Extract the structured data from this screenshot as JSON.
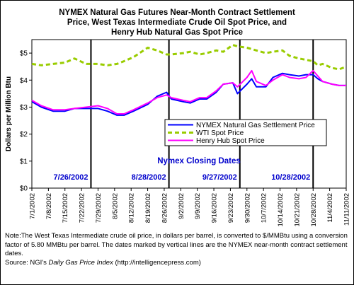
{
  "chart_data": {
    "type": "line",
    "title_lines": [
      "NYMEX Natural Gas Futures Near-Month Contract Settlement",
      "Price, West Texas Intermediate Crude Oil Spot Price, and",
      "Henry Hub Natural Gas Spot Price"
    ],
    "ylabel": "Dollars per Million Btu",
    "ylim": [
      0,
      5.5
    ],
    "y_ticks": [
      "$0",
      "$1",
      "$2",
      "$3",
      "$4",
      "$5"
    ],
    "x_ticks": [
      "7/1/2002",
      "7/8/2002",
      "7/15/2002",
      "7/22/2002",
      "7/29/2002",
      "8/5/2002",
      "8/12/2002",
      "8/19/2002",
      "8/26/2002",
      "9/2/2002",
      "9/9/2002",
      "9/16/2002",
      "9/23/2002",
      "9/30/2002",
      "10/7/2002",
      "10/14/2002",
      "10/21/2002",
      "10/28/2002",
      "11/4/2002",
      "11/11/2002"
    ],
    "x_start": "7/1/2002",
    "x_end": "11/11/2002",
    "grid": false,
    "legend_position": "center-right",
    "annotation_title": "Nymex Closing Dates",
    "closing_dates": [
      {
        "date": "7/26/2002",
        "label": "7/26/2002"
      },
      {
        "date": "8/28/2002",
        "label": "8/28/2002"
      },
      {
        "date": "9/27/2002",
        "label": "9/27/2002"
      },
      {
        "date": "10/28/2002",
        "label": "10/28/2002"
      }
    ],
    "series": [
      {
        "name": "NYMEX Natural Gas Settlement Price",
        "color": "#0000ff",
        "style": "solid",
        "points": [
          [
            "7/1/2002",
            3.2
          ],
          [
            "7/5/2002",
            3.0
          ],
          [
            "7/10/2002",
            2.85
          ],
          [
            "7/15/2002",
            2.85
          ],
          [
            "7/19/2002",
            2.95
          ],
          [
            "7/24/2002",
            2.95
          ],
          [
            "7/29/2002",
            2.95
          ],
          [
            "8/2/2002",
            2.85
          ],
          [
            "8/6/2002",
            2.7
          ],
          [
            "8/9/2002",
            2.7
          ],
          [
            "8/13/2002",
            2.85
          ],
          [
            "8/19/2002",
            3.1
          ],
          [
            "8/23/2002",
            3.4
          ],
          [
            "8/27/2002",
            3.55
          ],
          [
            "8/29/2002",
            3.3
          ],
          [
            "9/3/2002",
            3.2
          ],
          [
            "9/6/2002",
            3.15
          ],
          [
            "9/10/2002",
            3.3
          ],
          [
            "9/13/2002",
            3.3
          ],
          [
            "9/17/2002",
            3.55
          ],
          [
            "9/20/2002",
            3.85
          ],
          [
            "9/24/2002",
            3.9
          ],
          [
            "9/26/2002",
            3.5
          ],
          [
            "9/30/2002",
            3.85
          ],
          [
            "10/2/2002",
            4.05
          ],
          [
            "10/4/2002",
            3.75
          ],
          [
            "10/8/2002",
            3.75
          ],
          [
            "10/11/2002",
            4.1
          ],
          [
            "10/15/2002",
            4.25
          ],
          [
            "10/18/2002",
            4.2
          ],
          [
            "10/22/2002",
            4.15
          ],
          [
            "10/25/2002",
            4.2
          ],
          [
            "10/28/2002",
            4.2
          ],
          [
            "10/30/2002",
            4.05
          ],
          [
            "11/1/2002",
            3.95
          ],
          [
            "11/5/2002",
            3.85
          ],
          [
            "11/8/2002",
            3.8
          ],
          [
            "11/11/2002",
            3.8
          ]
        ]
      },
      {
        "name": "WTI Spot Price",
        "color": "#99cc00",
        "style": "dashed",
        "points": [
          [
            "7/1/2002",
            4.6
          ],
          [
            "7/5/2002",
            4.55
          ],
          [
            "7/10/2002",
            4.6
          ],
          [
            "7/15/2002",
            4.65
          ],
          [
            "7/19/2002",
            4.8
          ],
          [
            "7/24/2002",
            4.6
          ],
          [
            "7/29/2002",
            4.6
          ],
          [
            "8/2/2002",
            4.55
          ],
          [
            "8/6/2002",
            4.6
          ],
          [
            "8/9/2002",
            4.7
          ],
          [
            "8/13/2002",
            4.85
          ],
          [
            "8/19/2002",
            5.2
          ],
          [
            "8/23/2002",
            5.1
          ],
          [
            "8/27/2002",
            4.95
          ],
          [
            "8/29/2002",
            4.95
          ],
          [
            "9/3/2002",
            5.0
          ],
          [
            "9/6/2002",
            5.05
          ],
          [
            "9/10/2002",
            4.95
          ],
          [
            "9/13/2002",
            5.0
          ],
          [
            "9/17/2002",
            5.1
          ],
          [
            "9/20/2002",
            5.05
          ],
          [
            "9/24/2002",
            5.3
          ],
          [
            "9/26/2002",
            5.25
          ],
          [
            "9/30/2002",
            5.2
          ],
          [
            "10/2/2002",
            5.15
          ],
          [
            "10/4/2002",
            5.1
          ],
          [
            "10/8/2002",
            5.0
          ],
          [
            "10/11/2002",
            5.05
          ],
          [
            "10/15/2002",
            5.1
          ],
          [
            "10/18/2002",
            4.9
          ],
          [
            "10/22/2002",
            4.8
          ],
          [
            "10/25/2002",
            4.75
          ],
          [
            "10/28/2002",
            4.7
          ],
          [
            "10/30/2002",
            4.55
          ],
          [
            "11/1/2002",
            4.6
          ],
          [
            "11/5/2002",
            4.45
          ],
          [
            "11/8/2002",
            4.4
          ],
          [
            "11/11/2002",
            4.5
          ]
        ]
      },
      {
        "name": "Henry Hub Spot Price",
        "color": "#ff00ff",
        "style": "solid",
        "points": [
          [
            "7/1/2002",
            3.25
          ],
          [
            "7/5/2002",
            3.05
          ],
          [
            "7/10/2002",
            2.9
          ],
          [
            "7/15/2002",
            2.9
          ],
          [
            "7/19/2002",
            2.95
          ],
          [
            "7/24/2002",
            3.0
          ],
          [
            "7/29/2002",
            3.05
          ],
          [
            "8/2/2002",
            2.95
          ],
          [
            "8/6/2002",
            2.75
          ],
          [
            "8/9/2002",
            2.75
          ],
          [
            "8/13/2002",
            2.9
          ],
          [
            "8/19/2002",
            3.15
          ],
          [
            "8/23/2002",
            3.35
          ],
          [
            "8/27/2002",
            3.45
          ],
          [
            "8/29/2002",
            3.35
          ],
          [
            "9/3/2002",
            3.25
          ],
          [
            "9/6/2002",
            3.2
          ],
          [
            "9/10/2002",
            3.35
          ],
          [
            "9/13/2002",
            3.35
          ],
          [
            "9/17/2002",
            3.6
          ],
          [
            "9/20/2002",
            3.85
          ],
          [
            "9/24/2002",
            3.9
          ],
          [
            "9/26/2002",
            3.75
          ],
          [
            "9/30/2002",
            4.1
          ],
          [
            "10/2/2002",
            4.35
          ],
          [
            "10/4/2002",
            3.95
          ],
          [
            "10/8/2002",
            3.8
          ],
          [
            "10/11/2002",
            4.0
          ],
          [
            "10/15/2002",
            4.2
          ],
          [
            "10/18/2002",
            4.1
          ],
          [
            "10/22/2002",
            4.05
          ],
          [
            "10/25/2002",
            4.1
          ],
          [
            "10/28/2002",
            4.35
          ],
          [
            "10/30/2002",
            4.15
          ],
          [
            "11/1/2002",
            3.95
          ],
          [
            "11/5/2002",
            3.85
          ],
          [
            "11/8/2002",
            3.8
          ],
          [
            "11/11/2002",
            3.8
          ]
        ]
      }
    ]
  },
  "note": {
    "body": "Note:The West Texas Intermediate crude oil price, in dollars per barrel,  is converted to $/MMBtu using a conversion factor of 5.80 MMBtu per barrel.  The dates marked by vertical lines are the NYMEX near-month contract settlement dates.",
    "source_prefix": "Source:  NGI's ",
    "source_italic": "Daily Gas Price Index",
    "source_suffix": " (http://intelligencepress.com)"
  }
}
